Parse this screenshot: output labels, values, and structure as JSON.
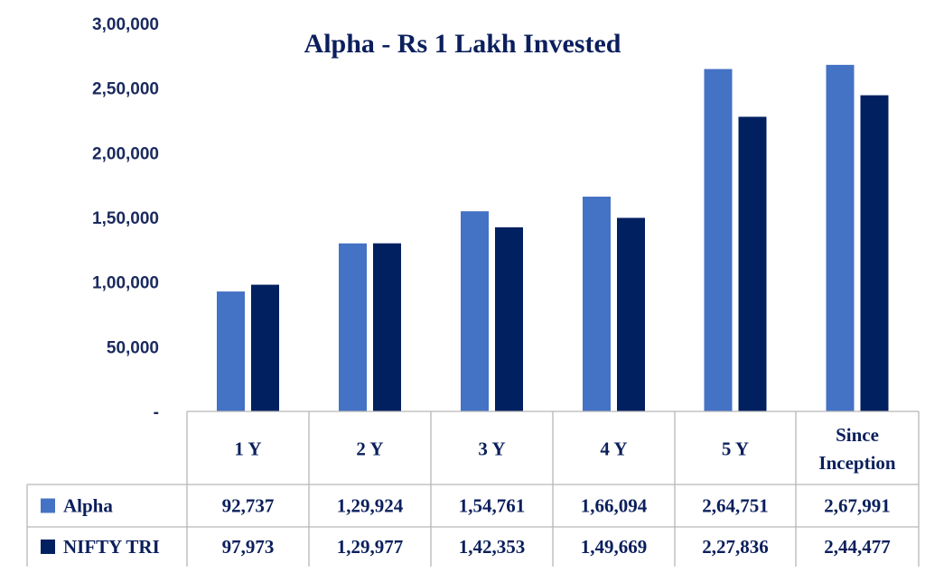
{
  "chart_data": {
    "type": "bar",
    "title": "Alpha - Rs 1 Lakh Invested",
    "categories": [
      [
        "1 Y"
      ],
      [
        "2 Y"
      ],
      [
        "3 Y"
      ],
      [
        "4 Y"
      ],
      [
        "5 Y"
      ],
      [
        "Since",
        "Inception"
      ]
    ],
    "series": [
      {
        "name": "Alpha",
        "color": "#4472c4",
        "values": [
          92737,
          129924,
          154761,
          166094,
          264751,
          267991
        ],
        "labels": [
          "92,737",
          "1,29,924",
          "1,54,761",
          "1,66,094",
          "2,64,751",
          "2,67,991"
        ]
      },
      {
        "name": "NIFTY TRI",
        "color": "#002060",
        "values": [
          97973,
          129977,
          142353,
          149669,
          227836,
          244477
        ],
        "labels": [
          "97,973",
          "1,29,977",
          "1,42,353",
          "1,49,669",
          "2,27,836",
          "2,44,477"
        ]
      }
    ],
    "ylim": [
      0,
      300000
    ],
    "yticks": [
      {
        "value": 0,
        "label": "-"
      },
      {
        "value": 50000,
        "label": "50,000"
      },
      {
        "value": 100000,
        "label": "1,00,000"
      },
      {
        "value": 150000,
        "label": "1,50,000"
      },
      {
        "value": 200000,
        "label": "2,00,000"
      },
      {
        "value": 250000,
        "label": "2,50,000"
      },
      {
        "value": 300000,
        "label": "3,00,000"
      }
    ],
    "grid": false,
    "legend": "data-table"
  }
}
